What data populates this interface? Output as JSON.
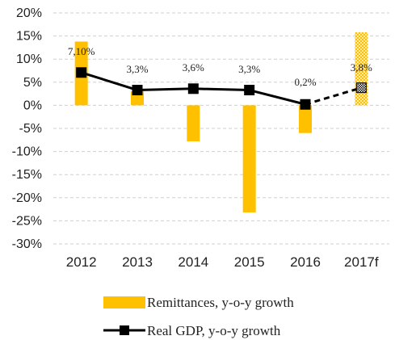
{
  "chart_data": {
    "type": "bar",
    "categories": [
      "2012",
      "2013",
      "2014",
      "2015",
      "2016",
      "2017f"
    ],
    "series": [
      {
        "name": "Remittances, y-o-y growth",
        "type": "bar",
        "values": [
          13.8,
          3.0,
          -7.8,
          -23.2,
          -6.0,
          15.8
        ],
        "color": "#FFC000",
        "forecast_from_index": 5
      },
      {
        "name": "Real GDP, y-o-y growth",
        "type": "line",
        "values": [
          7.1,
          3.3,
          3.6,
          3.3,
          0.2,
          3.8
        ],
        "labels": [
          "7,10%",
          "3,3%",
          "3,6%",
          "3,3%",
          "0,2%",
          "3,8%"
        ],
        "color": "#000000",
        "forecast_from_index": 5
      }
    ],
    "yticks": [
      "20%",
      "15%",
      "10%",
      "5%",
      "0%",
      "-5%",
      "-10%",
      "-15%",
      "-20%",
      "-25%",
      "-30%"
    ],
    "ylim": [
      -30,
      20
    ],
    "grid": "horizontal dashed",
    "legend_position": "bottom"
  }
}
